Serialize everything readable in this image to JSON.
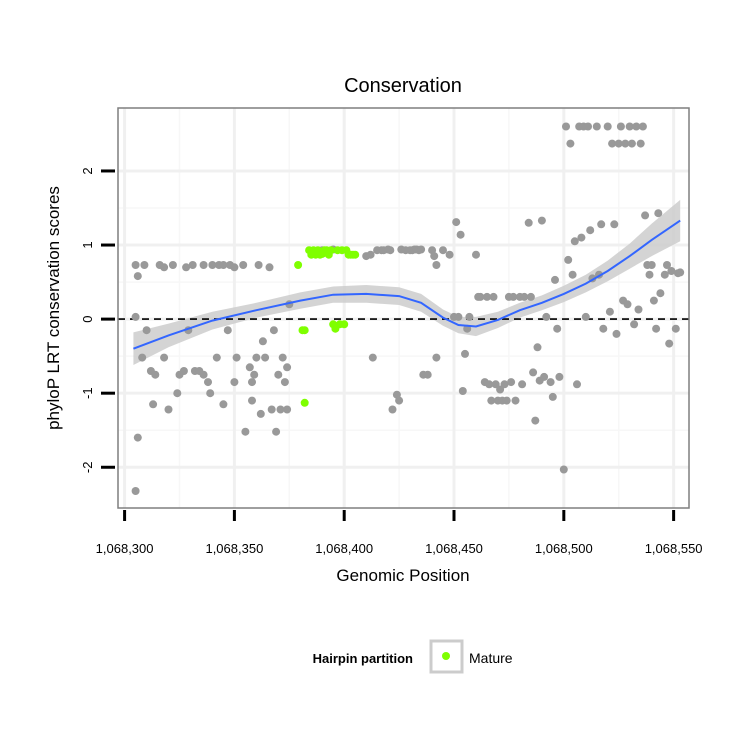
{
  "chart_data": {
    "type": "scatter",
    "title": "Conservation",
    "xlabel": "Genomic Position",
    "ylabel": "phyloP LRT conservation scores",
    "xlim": [
      1068297,
      1068557
    ],
    "ylim": [
      -2.55,
      2.85
    ],
    "x_ticks": [
      1068300,
      1068350,
      1068400,
      1068450,
      1068500,
      1068550
    ],
    "x_tick_labels": [
      "1,068,300",
      "1,068,350",
      "1,068,400",
      "1,068,450",
      "1,068,500",
      "1,068,550"
    ],
    "y_ticks": [
      -2,
      -1,
      0,
      1,
      2
    ],
    "y_tick_labels": [
      "-2",
      "-1",
      "0",
      "1",
      "2"
    ],
    "grid": true,
    "reference_line": {
      "y": 0,
      "style": "dashed"
    },
    "legend": {
      "title": "Hairpin partition",
      "entries": [
        "Mature"
      ],
      "position": "bottom"
    },
    "colors": {
      "other": "#999999",
      "mature": "#7fff00",
      "smooth": "#3366ff",
      "ribbon": "#cccccc",
      "panel_border": "#7f7f7f"
    },
    "series": [
      {
        "name": "Other",
        "points": [
          [
            1068305,
            0.73
          ],
          [
            1068306,
            0.58
          ],
          [
            1068305,
            0.03
          ],
          [
            1068308,
            -0.52
          ],
          [
            1068306,
            -1.6
          ],
          [
            1068305,
            -2.32
          ],
          [
            1068309,
            0.73
          ],
          [
            1068310,
            -0.15
          ],
          [
            1068312,
            -0.7
          ],
          [
            1068313,
            -1.15
          ],
          [
            1068314,
            -0.75
          ],
          [
            1068316,
            0.73
          ],
          [
            1068318,
            0.7
          ],
          [
            1068318,
            -0.52
          ],
          [
            1068320,
            -1.22
          ],
          [
            1068322,
            0.73
          ],
          [
            1068324,
            -1.0
          ],
          [
            1068325,
            -0.75
          ],
          [
            1068327,
            -0.7
          ],
          [
            1068328,
            0.7
          ],
          [
            1068329,
            -0.15
          ],
          [
            1068331,
            0.73
          ],
          [
            1068332,
            -0.7
          ],
          [
            1068334,
            -0.7
          ],
          [
            1068336,
            0.73
          ],
          [
            1068336,
            -0.75
          ],
          [
            1068338,
            -0.85
          ],
          [
            1068339,
            -1.0
          ],
          [
            1068340,
            0.73
          ],
          [
            1068342,
            -0.52
          ],
          [
            1068343,
            0.73
          ],
          [
            1068345,
            0.73
          ],
          [
            1068345,
            -1.15
          ],
          [
            1068347,
            -0.15
          ],
          [
            1068348,
            0.73
          ],
          [
            1068350,
            0.7
          ],
          [
            1068350,
            -0.85
          ],
          [
            1068351,
            -0.52
          ],
          [
            1068354,
            0.73
          ],
          [
            1068355,
            -1.52
          ],
          [
            1068357,
            -0.65
          ],
          [
            1068358,
            -1.1
          ],
          [
            1068358,
            -0.85
          ],
          [
            1068359,
            -0.75
          ],
          [
            1068360,
            -0.52
          ],
          [
            1068361,
            0.73
          ],
          [
            1068362,
            -1.28
          ],
          [
            1068363,
            -0.3
          ],
          [
            1068364,
            -0.52
          ],
          [
            1068366,
            0.7
          ],
          [
            1068367,
            -1.22
          ],
          [
            1068368,
            -0.15
          ],
          [
            1068369,
            -1.52
          ],
          [
            1068370,
            -0.75
          ],
          [
            1068371,
            -1.22
          ],
          [
            1068372,
            -0.52
          ],
          [
            1068373,
            -0.85
          ],
          [
            1068374,
            -0.65
          ],
          [
            1068374,
            -1.22
          ],
          [
            1068375,
            0.2
          ],
          [
            1068390,
            0.93
          ],
          [
            1068395,
            0.94
          ],
          [
            1068410,
            0.85
          ],
          [
            1068412,
            0.87
          ],
          [
            1068413,
            -0.52
          ],
          [
            1068415,
            0.93
          ],
          [
            1068417,
            0.93
          ],
          [
            1068418,
            0.93
          ],
          [
            1068420,
            0.94
          ],
          [
            1068421,
            0.93
          ],
          [
            1068422,
            -1.22
          ],
          [
            1068424,
            -1.02
          ],
          [
            1068425,
            -1.1
          ],
          [
            1068426,
            0.94
          ],
          [
            1068428,
            0.93
          ],
          [
            1068430,
            0.93
          ],
          [
            1068431,
            0.93
          ],
          [
            1068432,
            0.94
          ],
          [
            1068433,
            0.94
          ],
          [
            1068434,
            0.93
          ],
          [
            1068435,
            0.94
          ],
          [
            1068436,
            -0.75
          ],
          [
            1068438,
            -0.75
          ],
          [
            1068440,
            0.93
          ],
          [
            1068441,
            0.85
          ],
          [
            1068442,
            0.73
          ],
          [
            1068442,
            -0.52
          ],
          [
            1068445,
            0.93
          ],
          [
            1068448,
            0.87
          ],
          [
            1068450,
            0.03
          ],
          [
            1068451,
            1.31
          ],
          [
            1068452,
            0.03
          ],
          [
            1068453,
            1.14
          ],
          [
            1068454,
            -0.97
          ],
          [
            1068455,
            -0.47
          ],
          [
            1068456,
            -0.13
          ],
          [
            1068457,
            0.03
          ],
          [
            1068460,
            0.87
          ],
          [
            1068461,
            0.3
          ],
          [
            1068462,
            0.3
          ],
          [
            1068464,
            -0.85
          ],
          [
            1068465,
            0.3
          ],
          [
            1068466,
            -0.88
          ],
          [
            1068467,
            -1.1
          ],
          [
            1068468,
            0.3
          ],
          [
            1068469,
            -0.88
          ],
          [
            1068470,
            -1.1
          ],
          [
            1068471,
            -0.95
          ],
          [
            1068472,
            -1.1
          ],
          [
            1068473,
            -0.88
          ],
          [
            1068474,
            -1.1
          ],
          [
            1068475,
            0.3
          ],
          [
            1068476,
            -0.85
          ],
          [
            1068477,
            0.3
          ],
          [
            1068478,
            -1.1
          ],
          [
            1068480,
            0.3
          ],
          [
            1068481,
            -0.88
          ],
          [
            1068482,
            0.3
          ],
          [
            1068484,
            1.3
          ],
          [
            1068485,
            0.3
          ],
          [
            1068486,
            -0.72
          ],
          [
            1068487,
            -1.37
          ],
          [
            1068488,
            -0.38
          ],
          [
            1068489,
            -0.83
          ],
          [
            1068490,
            1.33
          ],
          [
            1068491,
            -0.78
          ],
          [
            1068492,
            0.03
          ],
          [
            1068494,
            -0.85
          ],
          [
            1068495,
            -1.05
          ],
          [
            1068496,
            0.53
          ],
          [
            1068497,
            -0.13
          ],
          [
            1068498,
            -0.78
          ],
          [
            1068500,
            -2.03
          ],
          [
            1068501,
            2.6
          ],
          [
            1068502,
            0.8
          ],
          [
            1068503,
            2.37
          ],
          [
            1068504,
            0.6
          ],
          [
            1068505,
            1.05
          ],
          [
            1068506,
            -0.88
          ],
          [
            1068507,
            2.6
          ],
          [
            1068508,
            1.1
          ],
          [
            1068509,
            2.6
          ],
          [
            1068510,
            0.03
          ],
          [
            1068511,
            2.6
          ],
          [
            1068512,
            1.2
          ],
          [
            1068513,
            0.55
          ],
          [
            1068515,
            2.6
          ],
          [
            1068516,
            0.6
          ],
          [
            1068517,
            1.28
          ],
          [
            1068518,
            -0.13
          ],
          [
            1068520,
            2.6
          ],
          [
            1068521,
            0.1
          ],
          [
            1068522,
            2.37
          ],
          [
            1068523,
            1.28
          ],
          [
            1068524,
            -0.2
          ],
          [
            1068525,
            2.37
          ],
          [
            1068526,
            2.6
          ],
          [
            1068527,
            0.25
          ],
          [
            1068528,
            2.37
          ],
          [
            1068529,
            0.2
          ],
          [
            1068530,
            2.6
          ],
          [
            1068531,
            2.37
          ],
          [
            1068532,
            -0.07
          ],
          [
            1068533,
            2.6
          ],
          [
            1068534,
            0.13
          ],
          [
            1068535,
            2.37
          ],
          [
            1068536,
            2.6
          ],
          [
            1068537,
            1.4
          ],
          [
            1068538,
            0.73
          ],
          [
            1068539,
            0.6
          ],
          [
            1068540,
            0.73
          ],
          [
            1068541,
            0.25
          ],
          [
            1068542,
            -0.13
          ],
          [
            1068543,
            1.43
          ],
          [
            1068544,
            0.35
          ],
          [
            1068546,
            0.6
          ],
          [
            1068547,
            0.73
          ],
          [
            1068548,
            -0.33
          ],
          [
            1068549,
            0.65
          ],
          [
            1068551,
            -0.13
          ],
          [
            1068552,
            0.62
          ],
          [
            1068553,
            0.63
          ]
        ]
      },
      {
        "name": "Mature",
        "points": [
          [
            1068379,
            0.73
          ],
          [
            1068381,
            -0.15
          ],
          [
            1068382,
            -0.15
          ],
          [
            1068382,
            -1.13
          ],
          [
            1068384,
            0.93
          ],
          [
            1068385,
            0.87
          ],
          [
            1068386,
            0.93
          ],
          [
            1068387,
            0.87
          ],
          [
            1068388,
            0.93
          ],
          [
            1068389,
            0.87
          ],
          [
            1068390,
            0.88
          ],
          [
            1068391,
            0.93
          ],
          [
            1068392,
            0.93
          ],
          [
            1068393,
            0.87
          ],
          [
            1068394,
            0.93
          ],
          [
            1068395,
            -0.07
          ],
          [
            1068396,
            -0.13
          ],
          [
            1068397,
            0.93
          ],
          [
            1068398,
            -0.07
          ],
          [
            1068399,
            0.93
          ],
          [
            1068400,
            -0.07
          ],
          [
            1068401,
            0.93
          ],
          [
            1068402,
            0.87
          ],
          [
            1068403,
            0.87
          ],
          [
            1068404,
            0.87
          ],
          [
            1068405,
            0.87
          ]
        ]
      }
    ],
    "smooth": {
      "method": "loess",
      "x": [
        1068304,
        1068320,
        1068340,
        1068360,
        1068380,
        1068395,
        1068410,
        1068425,
        1068435,
        1068445,
        1068452,
        1068460,
        1068470,
        1068480,
        1068490,
        1068500,
        1068510,
        1068520,
        1068530,
        1068540,
        1068553
      ],
      "y": [
        -0.4,
        -0.22,
        -0.02,
        0.12,
        0.25,
        0.33,
        0.34,
        0.31,
        0.22,
        0.02,
        -0.08,
        -0.1,
        -0.01,
        0.12,
        0.22,
        0.34,
        0.48,
        0.65,
        0.85,
        1.07,
        1.33
      ],
      "lower": [
        -0.62,
        -0.38,
        -0.14,
        0.02,
        0.14,
        0.22,
        0.22,
        0.19,
        0.1,
        -0.09,
        -0.19,
        -0.23,
        -0.12,
        0.02,
        0.12,
        0.23,
        0.36,
        0.51,
        0.68,
        0.85,
        1.05
      ],
      "upper": [
        -0.18,
        -0.06,
        0.1,
        0.22,
        0.36,
        0.44,
        0.46,
        0.43,
        0.34,
        0.13,
        0.03,
        0.03,
        0.1,
        0.22,
        0.32,
        0.45,
        0.6,
        0.79,
        1.02,
        1.29,
        1.61
      ]
    }
  }
}
